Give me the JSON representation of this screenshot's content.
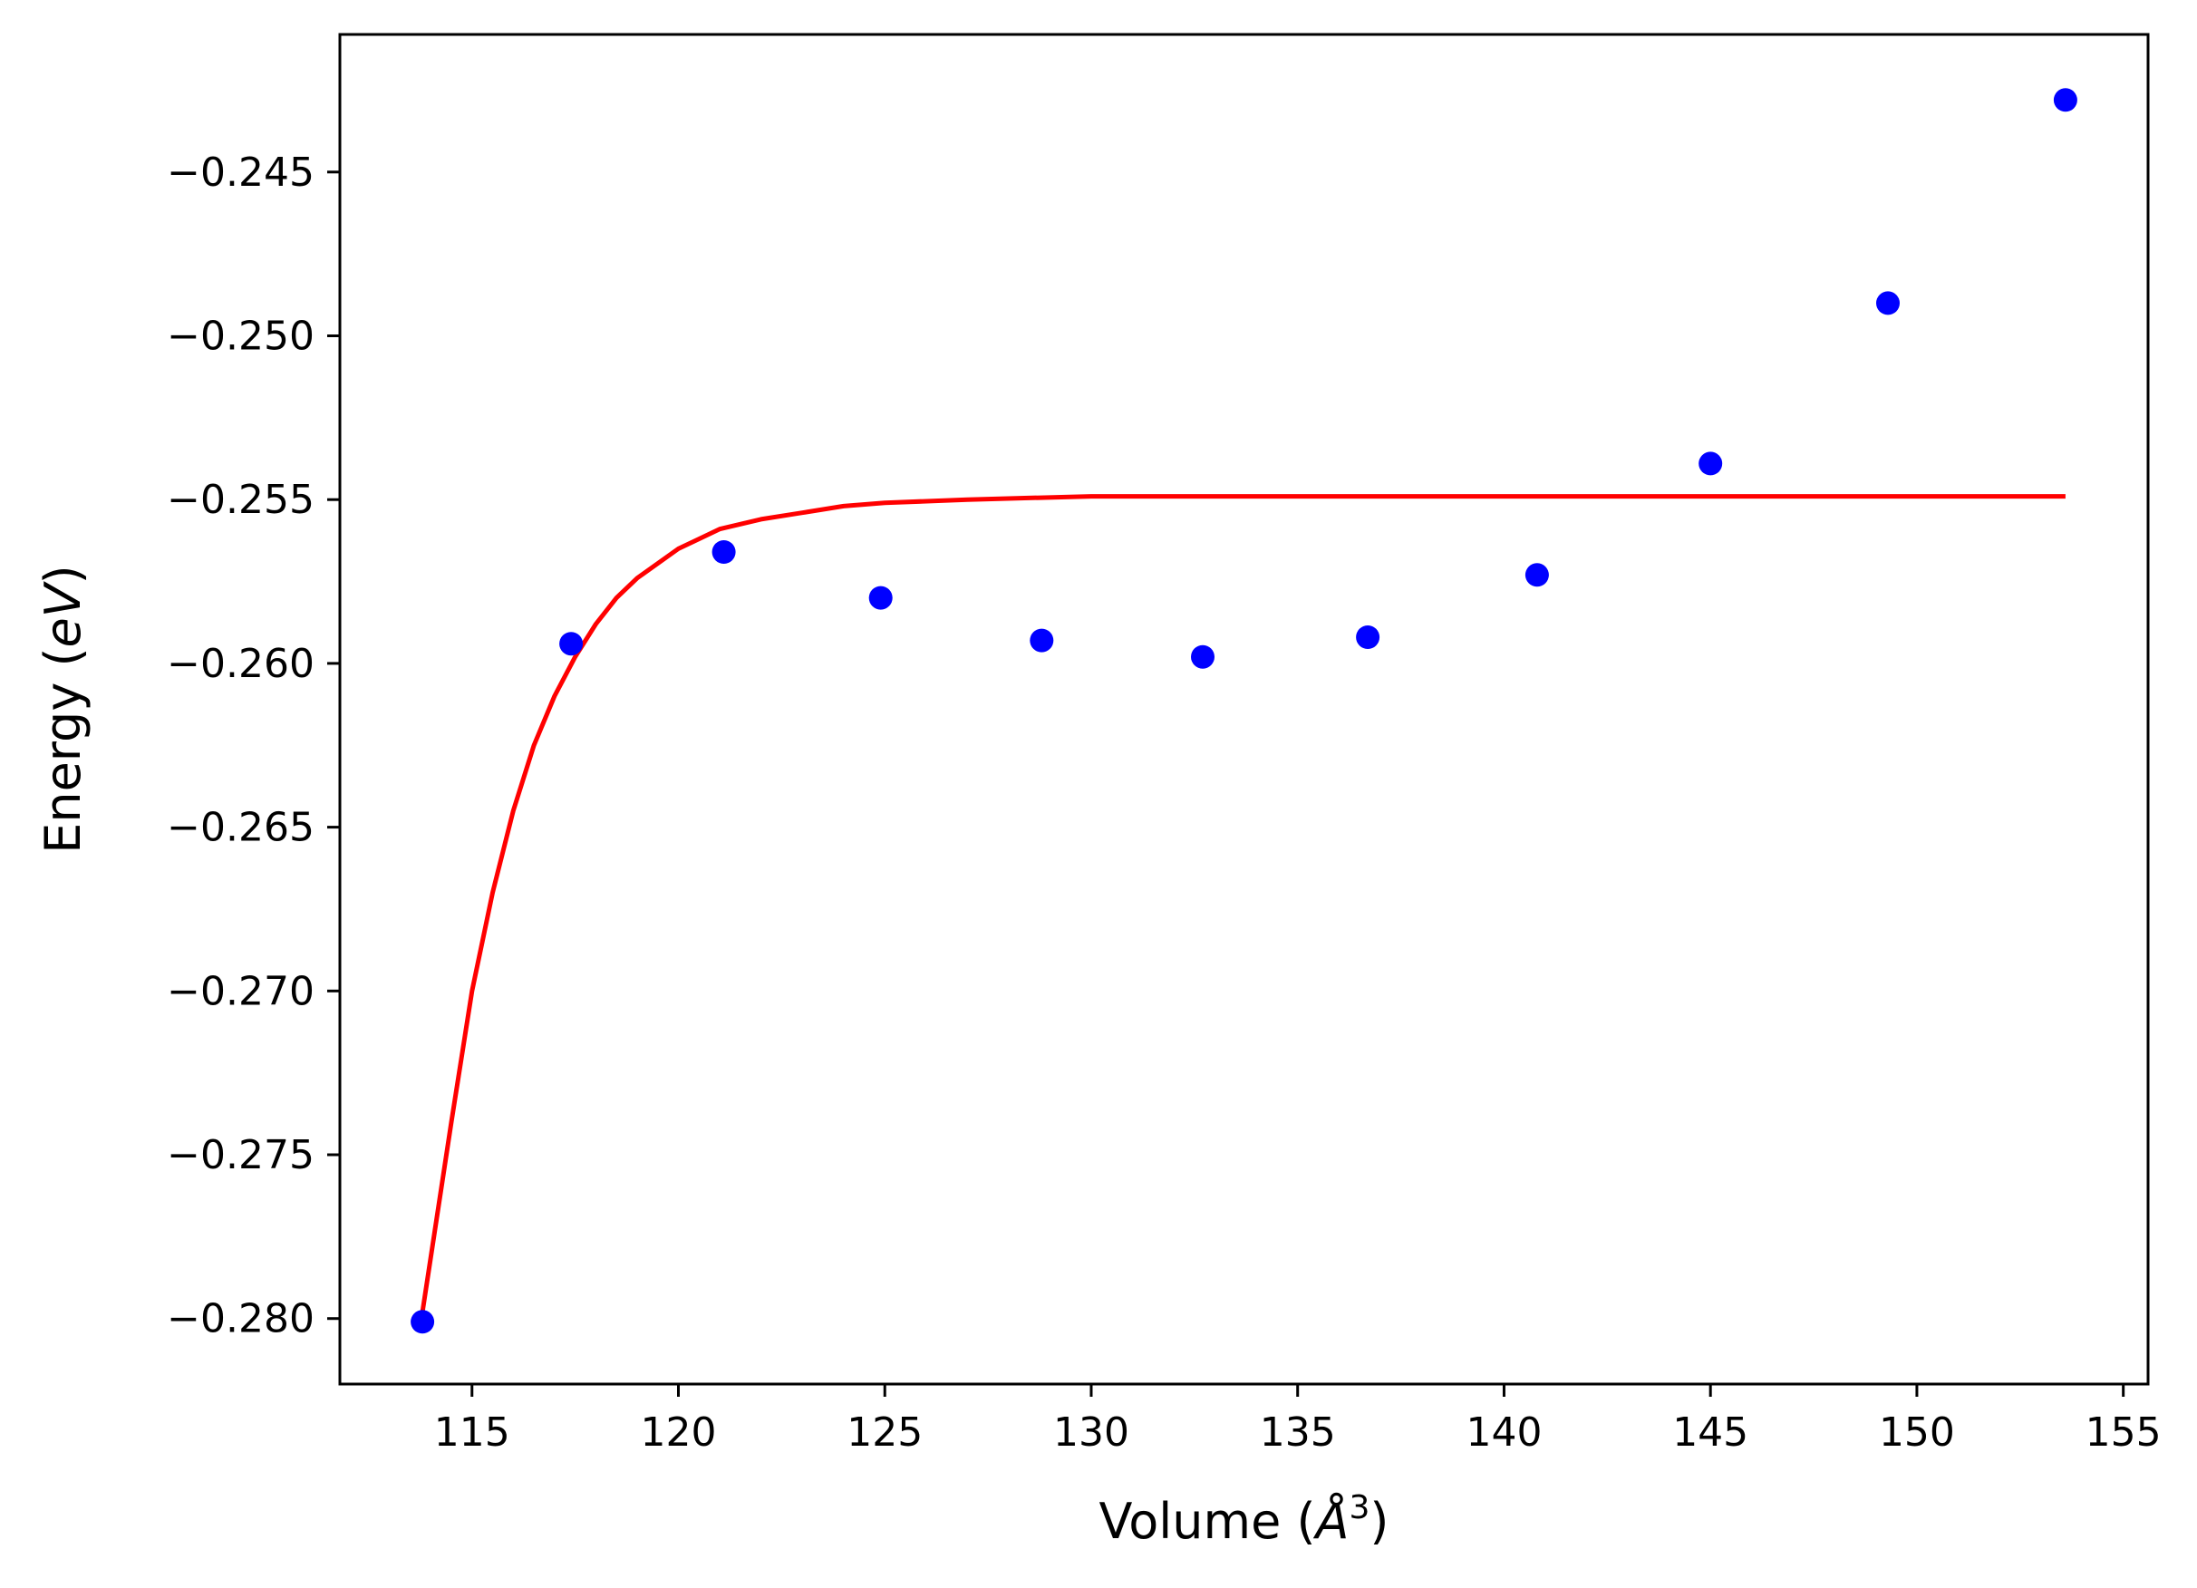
{
  "chart_data": {
    "type": "scatter",
    "xlabel": "Volume (",
    "xlabel_symbol": "Å",
    "xlabel_exponent": "3",
    "xlabel_suffix": ")",
    "ylabel": "Energy (",
    "ylabel_unit": "eV",
    "ylabel_suffix": ")",
    "xlim": [
      111.8,
      155.6
    ],
    "ylim": [
      -0.282,
      -0.2408
    ],
    "xticks": [
      {
        "value": 115,
        "label": "115"
      },
      {
        "value": 120,
        "label": "120"
      },
      {
        "value": 125,
        "label": "125"
      },
      {
        "value": 130,
        "label": "130"
      },
      {
        "value": 135,
        "label": "135"
      },
      {
        "value": 140,
        "label": "140"
      },
      {
        "value": 145,
        "label": "145"
      },
      {
        "value": 150,
        "label": "150"
      },
      {
        "value": 155,
        "label": "155"
      }
    ],
    "yticks": [
      {
        "value": -0.245,
        "label": "−0.245"
      },
      {
        "value": -0.25,
        "label": "−0.250"
      },
      {
        "value": -0.255,
        "label": "−0.255"
      },
      {
        "value": -0.26,
        "label": "−0.260"
      },
      {
        "value": -0.265,
        "label": "−0.265"
      },
      {
        "value": -0.27,
        "label": "−0.270"
      },
      {
        "value": -0.275,
        "label": "−0.275"
      },
      {
        "value": -0.28,
        "label": "−0.280"
      }
    ],
    "grid": false,
    "series": [
      {
        "kind": "scatter",
        "color": "#0000ff",
        "points": [
          {
            "x": 113.8,
            "y": -0.2801
          },
          {
            "x": 117.4,
            "y": -0.2594
          },
          {
            "x": 121.1,
            "y": -0.2566
          },
          {
            "x": 124.9,
            "y": -0.258
          },
          {
            "x": 128.8,
            "y": -0.2593
          },
          {
            "x": 132.7,
            "y": -0.2598
          },
          {
            "x": 136.7,
            "y": -0.2592
          },
          {
            "x": 140.8,
            "y": -0.2573
          },
          {
            "x": 145.0,
            "y": -0.2539
          },
          {
            "x": 149.3,
            "y": -0.249
          },
          {
            "x": 153.6,
            "y": -0.2428
          }
        ]
      },
      {
        "kind": "line",
        "color": "#ff0000",
        "points": [
          {
            "x": 113.8,
            "y": -0.2798
          },
          {
            "x": 114.5,
            "y": -0.274
          },
          {
            "x": 115.0,
            "y": -0.27
          },
          {
            "x": 115.5,
            "y": -0.267
          },
          {
            "x": 116.0,
            "y": -0.2645
          },
          {
            "x": 116.5,
            "y": -0.2625
          },
          {
            "x": 117.0,
            "y": -0.261
          },
          {
            "x": 117.5,
            "y": -0.2598
          },
          {
            "x": 118.0,
            "y": -0.2588
          },
          {
            "x": 118.5,
            "y": -0.258
          },
          {
            "x": 119.0,
            "y": -0.2574
          },
          {
            "x": 120.0,
            "y": -0.2565
          },
          {
            "x": 121.0,
            "y": -0.2559
          },
          {
            "x": 122.0,
            "y": -0.2556
          },
          {
            "x": 123.0,
            "y": -0.2554
          },
          {
            "x": 124.0,
            "y": -0.2552
          },
          {
            "x": 125.0,
            "y": -0.2551
          },
          {
            "x": 127.0,
            "y": -0.255
          },
          {
            "x": 130.0,
            "y": -0.2549
          },
          {
            "x": 135.0,
            "y": -0.2549
          },
          {
            "x": 140.0,
            "y": -0.2549
          },
          {
            "x": 145.0,
            "y": -0.2549
          },
          {
            "x": 150.0,
            "y": -0.2549
          },
          {
            "x": 153.6,
            "y": -0.2549
          }
        ]
      }
    ]
  }
}
